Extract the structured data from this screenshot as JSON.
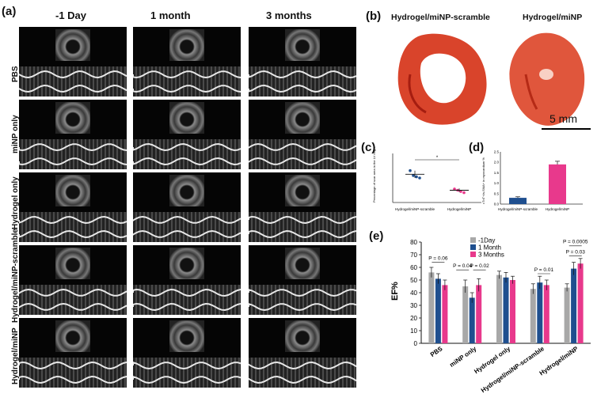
{
  "panels": {
    "a": "(a)",
    "b": "(b)",
    "c": "(c)",
    "d": "(d)",
    "e": "(e)"
  },
  "panel_a": {
    "columns": [
      "-1 Day",
      "1 month",
      "3 months"
    ],
    "rows": [
      "PBS",
      "miNP only",
      "Hydrogel only",
      "Hydrogel/miNP-scramble",
      "Hydrogel/miNP"
    ]
  },
  "panel_b": {
    "left_title": "Hydrogel/miNP-scramble",
    "right_title": "Hydrogel/miNP",
    "scale": "5 mm"
  },
  "colors": {
    "gray": "#a8a8a8",
    "blue": "#1f4f8f",
    "pink": "#e8398c",
    "tissue": "#d9442b"
  },
  "chart_data": [
    {
      "id": "c",
      "type": "scatter",
      "ylabel": "Percentage of scar area in the LV ring %",
      "categories": [
        "Hydrogel/miNP-scramble",
        "Hydrogel/miNP"
      ],
      "points": [
        {
          "category": "Hydrogel/miNP-scramble",
          "values": [
            26,
            22,
            21,
            20
          ]
        },
        {
          "category": "Hydrogel/miNP",
          "values": [
            11,
            10,
            9,
            8
          ]
        }
      ],
      "means": [
        23,
        10
      ],
      "errors": [
        3,
        1.5
      ],
      "significance": "*",
      "ylim": [
        0,
        40
      ]
    },
    {
      "id": "d",
      "type": "bar",
      "ylabel": "cTnT+/a-SMA+ in myocardium %",
      "categories": [
        "Hydrogel/miNP-scramble",
        "Hydrogel/miNP"
      ],
      "values": [
        0.3,
        1.9
      ],
      "errors": [
        0.05,
        0.15
      ],
      "yticks": [
        "0.0",
        "0.5",
        "1.0",
        "1.5",
        "2.0",
        "2.5"
      ],
      "ylim": [
        0,
        2.5
      ]
    },
    {
      "id": "e",
      "type": "bar",
      "ylabel": "EF%",
      "categories": [
        "PBS",
        "miNP only",
        "Hydrogel only",
        "Hydrogel/miNP-scramble",
        "Hydrogel/miNP"
      ],
      "series": [
        {
          "name": "-1Day",
          "values": [
            56,
            45,
            54,
            43,
            44
          ],
          "errors": [
            4,
            5,
            3,
            4,
            3
          ]
        },
        {
          "name": "1 Month",
          "values": [
            51,
            36,
            52,
            48,
            59
          ],
          "errors": [
            4,
            4,
            4,
            5,
            5
          ]
        },
        {
          "name": "3 Months",
          "values": [
            46,
            46,
            50,
            46,
            63
          ],
          "errors": [
            4,
            5,
            3,
            4,
            4
          ]
        }
      ],
      "yticks": [
        "0",
        "10",
        "20",
        "30",
        "40",
        "50",
        "60",
        "70",
        "80"
      ],
      "ylim": [
        0,
        80
      ],
      "annotations": [
        "P = 0.06",
        "P = 0.04",
        "P = 0.02",
        "P = 0.01",
        "P = 0.0005",
        "P = 0.03"
      ]
    }
  ]
}
